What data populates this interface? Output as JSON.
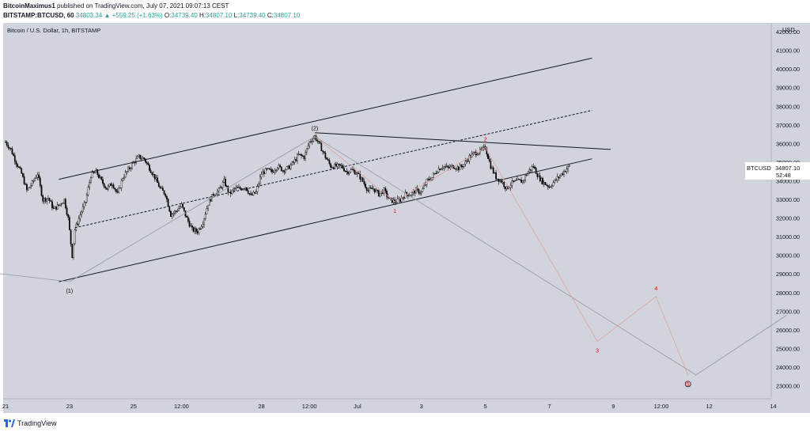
{
  "header": {
    "author": "BitcoinMaximus1",
    "published": "published on TradingView.com, July 07, 2021 09:07:13 CEST",
    "symbol": "BITSTAMP:BTCUSD, 60",
    "last": "34803.34",
    "arrow": "▲",
    "change": "+559.25 (+1.63%)",
    "o_label": "O:",
    "o_value": "34739.40",
    "h_label": "H:",
    "h_value": "34807.10",
    "l_label": "L:",
    "l_value": "34739.40",
    "c_label": "C:",
    "c_value": "34807.10"
  },
  "chart_label": "Bitcoin / U.S. Dollar, 1h, BITSTAMP",
  "footer": {
    "brand": "TradingView"
  },
  "colors": {
    "bg": "#d1d4dc",
    "up": "#26a69a",
    "wave": "#ff0000",
    "line": "#000000"
  },
  "chart_data": {
    "type": "candlestick",
    "title": "Bitcoin / U.S. Dollar, 1h, BITSTAMP",
    "ylabel": "USD",
    "ylim": [
      22500,
      42800
    ],
    "y_ticks": [
      23000,
      24000,
      25000,
      26000,
      27000,
      28000,
      29000,
      30000,
      31000,
      32000,
      33000,
      34000,
      35000,
      36000,
      37000,
      38000,
      39000,
      40000,
      41000,
      42000
    ],
    "y_tick_labels": [
      "23000.00",
      "24000.00",
      "25000.00",
      "26000.00",
      "27000.00",
      "28000.00",
      "29000.00",
      "30000.00",
      "31000.00",
      "32000.00",
      "33000.00",
      "34000.00",
      "35000.00",
      "36000.00",
      "37000.00",
      "38000.00",
      "39000.00",
      "40000.00",
      "41000.00",
      "42000.00"
    ],
    "x_ticks": [
      {
        "t": 0,
        "label": "21"
      },
      {
        "t": 48,
        "label": "23"
      },
      {
        "t": 96,
        "label": "25"
      },
      {
        "t": 132,
        "label": "12:00"
      },
      {
        "t": 192,
        "label": "28"
      },
      {
        "t": 228,
        "label": "12:00"
      },
      {
        "t": 264,
        "label": "Jul"
      },
      {
        "t": 312,
        "label": "3"
      },
      {
        "t": 360,
        "label": "5"
      },
      {
        "t": 408,
        "label": "7"
      },
      {
        "t": 456,
        "label": "9"
      },
      {
        "t": 492,
        "label": "12:00"
      },
      {
        "t": 528,
        "label": "12"
      },
      {
        "t": 576,
        "label": "14"
      }
    ],
    "price_label": {
      "symbol": "BTCUSD",
      "value": "34807.10",
      "countdown": "52:48"
    },
    "anchors": [
      [
        0,
        36100
      ],
      [
        4,
        35700
      ],
      [
        8,
        35000
      ],
      [
        12,
        34400
      ],
      [
        16,
        33500
      ],
      [
        20,
        33900
      ],
      [
        24,
        34400
      ],
      [
        28,
        33000
      ],
      [
        32,
        33100
      ],
      [
        36,
        32500
      ],
      [
        40,
        32700
      ],
      [
        44,
        33000
      ],
      [
        47,
        32000
      ],
      [
        50,
        30000
      ],
      [
        52,
        31400
      ],
      [
        56,
        32200
      ],
      [
        60,
        32900
      ],
      [
        64,
        34300
      ],
      [
        68,
        34500
      ],
      [
        72,
        34000
      ],
      [
        76,
        33600
      ],
      [
        80,
        33900
      ],
      [
        84,
        33300
      ],
      [
        88,
        34200
      ],
      [
        92,
        34600
      ],
      [
        96,
        35000
      ],
      [
        100,
        35300
      ],
      [
        104,
        35200
      ],
      [
        108,
        34700
      ],
      [
        112,
        34200
      ],
      [
        116,
        33600
      ],
      [
        120,
        33300
      ],
      [
        124,
        32200
      ],
      [
        128,
        32400
      ],
      [
        132,
        32700
      ],
      [
        136,
        32000
      ],
      [
        140,
        31400
      ],
      [
        144,
        31300
      ],
      [
        148,
        31800
      ],
      [
        152,
        32800
      ],
      [
        156,
        33300
      ],
      [
        160,
        33500
      ],
      [
        164,
        34000
      ],
      [
        168,
        33300
      ],
      [
        172,
        33600
      ],
      [
        176,
        33600
      ],
      [
        180,
        33700
      ],
      [
        184,
        33200
      ],
      [
        188,
        33400
      ],
      [
        192,
        34400
      ],
      [
        196,
        34600
      ],
      [
        200,
        34500
      ],
      [
        204,
        34800
      ],
      [
        208,
        34600
      ],
      [
        212,
        34700
      ],
      [
        216,
        35000
      ],
      [
        220,
        35400
      ],
      [
        224,
        35300
      ],
      [
        228,
        36100
      ],
      [
        232,
        36400
      ],
      [
        236,
        35900
      ],
      [
        240,
        35300
      ],
      [
        244,
        34800
      ],
      [
        248,
        34800
      ],
      [
        252,
        34800
      ],
      [
        256,
        34500
      ],
      [
        260,
        34600
      ],
      [
        264,
        34400
      ],
      [
        268,
        34000
      ],
      [
        272,
        33500
      ],
      [
        276,
        33600
      ],
      [
        280,
        33300
      ],
      [
        284,
        33500
      ],
      [
        288,
        33000
      ],
      [
        292,
        32900
      ],
      [
        296,
        33000
      ],
      [
        300,
        33300
      ],
      [
        304,
        33300
      ],
      [
        308,
        33500
      ],
      [
        312,
        33400
      ],
      [
        316,
        34000
      ],
      [
        320,
        34200
      ],
      [
        324,
        34600
      ],
      [
        328,
        34800
      ],
      [
        332,
        34700
      ],
      [
        336,
        34800
      ],
      [
        340,
        34700
      ],
      [
        344,
        34900
      ],
      [
        348,
        35300
      ],
      [
        352,
        35500
      ],
      [
        356,
        35600
      ],
      [
        360,
        35800
      ],
      [
        364,
        34800
      ],
      [
        368,
        34200
      ],
      [
        372,
        34000
      ],
      [
        376,
        33600
      ],
      [
        380,
        33900
      ],
      [
        384,
        34000
      ],
      [
        388,
        34000
      ],
      [
        392,
        34500
      ],
      [
        396,
        34800
      ],
      [
        400,
        34200
      ],
      [
        404,
        33900
      ],
      [
        408,
        33700
      ],
      [
        412,
        34000
      ],
      [
        416,
        34300
      ],
      [
        420,
        34600
      ],
      [
        423,
        34800
      ]
    ],
    "lines": [
      {
        "kind": "channel-upper",
        "from": [
          40,
          34100
        ],
        "to": [
          440,
          40600
        ]
      },
      {
        "kind": "channel-mid",
        "from": [
          52,
          31500
        ],
        "to": [
          440,
          37800
        ],
        "dashed": true
      },
      {
        "kind": "channel-lower",
        "from": [
          40,
          28600
        ],
        "to": [
          440,
          35200
        ]
      },
      {
        "kind": "resistance",
        "from": [
          232,
          36600
        ],
        "to": [
          454,
          35700
        ]
      },
      {
        "kind": "long-path",
        "points": [
          [
            -12,
            29100
          ],
          [
            48,
            28600
          ],
          [
            232,
            36400
          ],
          [
            518,
            23600
          ],
          [
            586,
            26800
          ]
        ]
      },
      {
        "kind": "wave-path",
        "points": [
          [
            232,
            36400
          ],
          [
            292,
            32900
          ],
          [
            360,
            35800
          ],
          [
            444,
            25400
          ],
          [
            488,
            27800
          ],
          [
            512,
            23600
          ]
        ]
      }
    ],
    "labels": [
      {
        "text": "(1)",
        "t": 48,
        "y": 28600,
        "color": "#000000",
        "place": "below"
      },
      {
        "text": "(2)",
        "t": 232,
        "y": 36400,
        "color": "#000000",
        "place": "above"
      },
      {
        "text": "1",
        "t": 292,
        "y": 32900,
        "color": "#ff0000",
        "place": "below"
      },
      {
        "text": "2",
        "t": 360,
        "y": 35800,
        "color": "#ff0000",
        "place": "above"
      },
      {
        "text": "3",
        "t": 444,
        "y": 25400,
        "color": "#ff0000",
        "place": "below"
      },
      {
        "text": "4",
        "t": 488,
        "y": 27800,
        "color": "#ff0000",
        "place": "above"
      },
      {
        "text": "5",
        "t": 512,
        "y": 23600,
        "color": "#ff0000",
        "place": "below-circle"
      }
    ]
  }
}
